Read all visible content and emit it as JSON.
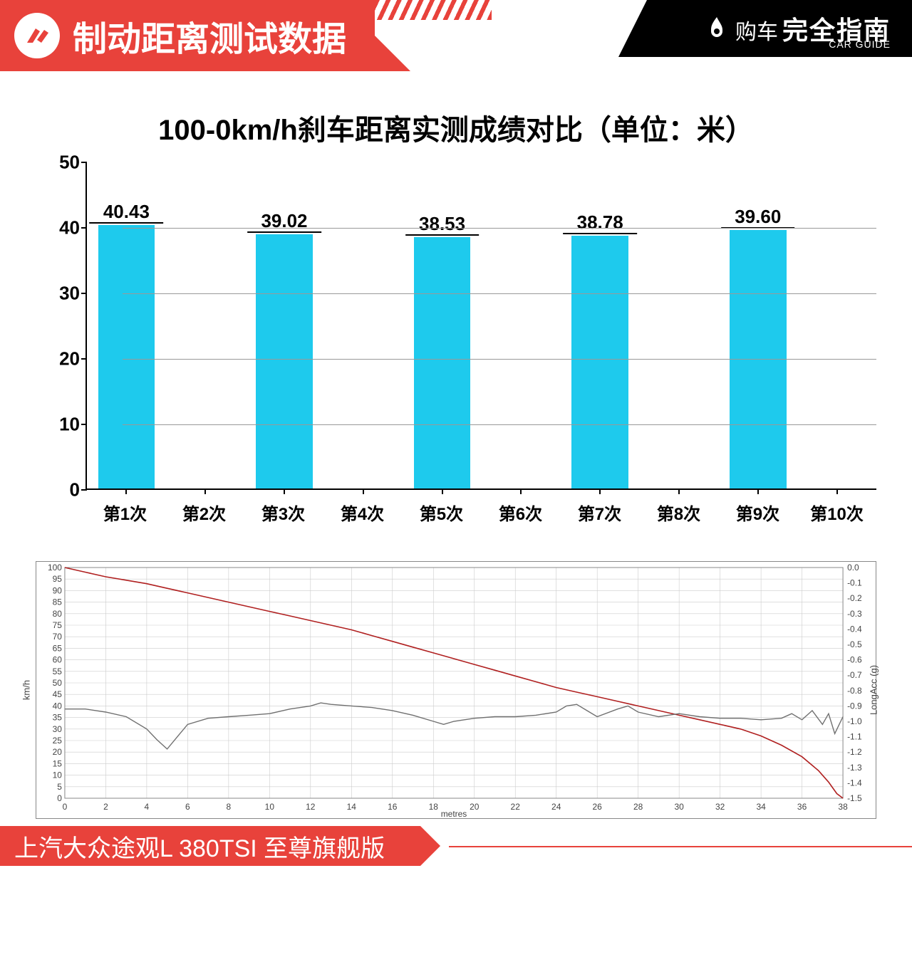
{
  "header": {
    "title": "制动距离测试数据",
    "logo_pre": "购车",
    "logo_cn": "完全指南",
    "logo_en": "CAR GUIDE",
    "bg_red": "#e8423b",
    "bg_black": "#000000"
  },
  "bar_chart": {
    "title": "100-0km/h刹车距离实测成绩对比（单位：米）",
    "ylim": [
      0,
      50
    ],
    "ytick_step": 10,
    "categories": [
      "第1次",
      "第2次",
      "第3次",
      "第4次",
      "第5次",
      "第6次",
      "第7次",
      "第8次",
      "第9次",
      "第10次"
    ],
    "values": [
      40.43,
      null,
      39.02,
      null,
      38.53,
      null,
      38.78,
      null,
      39.6,
      null
    ],
    "bar_color": "#1ecaed",
    "grid_color": "#999999",
    "axis_color": "#000000",
    "label_fontsize": 26,
    "xlabel_fontsize": 24,
    "title_fontsize": 40
  },
  "line_chart": {
    "xlabel": "metres",
    "y1label": "km/h",
    "y2label": "LongAcc (g)",
    "x_lim": [
      0,
      38
    ],
    "x_tick_step": 2,
    "y1_lim": [
      0,
      100
    ],
    "y1_tick_step": 5,
    "y2_lim": [
      -1.5,
      0.0
    ],
    "y2_tick_step": 0.1,
    "speed_color": "#b02020",
    "accel_color": "#707070",
    "grid_color": "#cccccc",
    "border_color": "#888888",
    "speed_series": [
      [
        0,
        100
      ],
      [
        1,
        98
      ],
      [
        2,
        96
      ],
      [
        3,
        94.5
      ],
      [
        4,
        93
      ],
      [
        5,
        91
      ],
      [
        6,
        89
      ],
      [
        7,
        87
      ],
      [
        8,
        85
      ],
      [
        9,
        83
      ],
      [
        10,
        81
      ],
      [
        11,
        79
      ],
      [
        12,
        77
      ],
      [
        13,
        75
      ],
      [
        14,
        73
      ],
      [
        15,
        70.5
      ],
      [
        16,
        68
      ],
      [
        17,
        65.5
      ],
      [
        18,
        63
      ],
      [
        19,
        60.5
      ],
      [
        20,
        58
      ],
      [
        21,
        55.5
      ],
      [
        22,
        53
      ],
      [
        23,
        50.5
      ],
      [
        24,
        48
      ],
      [
        25,
        46
      ],
      [
        26,
        44
      ],
      [
        27,
        42
      ],
      [
        28,
        40
      ],
      [
        29,
        38
      ],
      [
        30,
        36
      ],
      [
        31,
        34
      ],
      [
        32,
        32
      ],
      [
        33,
        30
      ],
      [
        34,
        27
      ],
      [
        35,
        23
      ],
      [
        36,
        18
      ],
      [
        36.8,
        12
      ],
      [
        37.3,
        7
      ],
      [
        37.7,
        2
      ],
      [
        38,
        0
      ]
    ],
    "accel_series_g": [
      [
        0,
        -0.92
      ],
      [
        1,
        -0.92
      ],
      [
        2,
        -0.94
      ],
      [
        3,
        -0.97
      ],
      [
        4,
        -1.05
      ],
      [
        4.5,
        -1.12
      ],
      [
        5,
        -1.18
      ],
      [
        5.5,
        -1.1
      ],
      [
        6,
        -1.02
      ],
      [
        7,
        -0.98
      ],
      [
        8,
        -0.97
      ],
      [
        9,
        -0.96
      ],
      [
        10,
        -0.95
      ],
      [
        11,
        -0.92
      ],
      [
        12,
        -0.9
      ],
      [
        12.5,
        -0.88
      ],
      [
        13,
        -0.89
      ],
      [
        14,
        -0.9
      ],
      [
        15,
        -0.91
      ],
      [
        16,
        -0.93
      ],
      [
        17,
        -0.96
      ],
      [
        18,
        -1.0
      ],
      [
        18.5,
        -1.02
      ],
      [
        19,
        -1.0
      ],
      [
        20,
        -0.98
      ],
      [
        21,
        -0.97
      ],
      [
        22,
        -0.97
      ],
      [
        23,
        -0.96
      ],
      [
        24,
        -0.94
      ],
      [
        24.5,
        -0.9
      ],
      [
        25,
        -0.89
      ],
      [
        25.5,
        -0.93
      ],
      [
        26,
        -0.97
      ],
      [
        27,
        -0.92
      ],
      [
        27.5,
        -0.9
      ],
      [
        28,
        -0.94
      ],
      [
        29,
        -0.97
      ],
      [
        30,
        -0.95
      ],
      [
        31,
        -0.97
      ],
      [
        32,
        -0.98
      ],
      [
        33,
        -0.98
      ],
      [
        34,
        -0.99
      ],
      [
        35,
        -0.98
      ],
      [
        35.5,
        -0.95
      ],
      [
        36,
        -0.99
      ],
      [
        36.5,
        -0.93
      ],
      [
        37,
        -1.02
      ],
      [
        37.3,
        -0.95
      ],
      [
        37.6,
        -1.08
      ],
      [
        38,
        -0.97
      ]
    ]
  },
  "footer": {
    "text": "上汽大众途观L 380TSI 至尊旗舰版",
    "bg": "#e8423b"
  }
}
